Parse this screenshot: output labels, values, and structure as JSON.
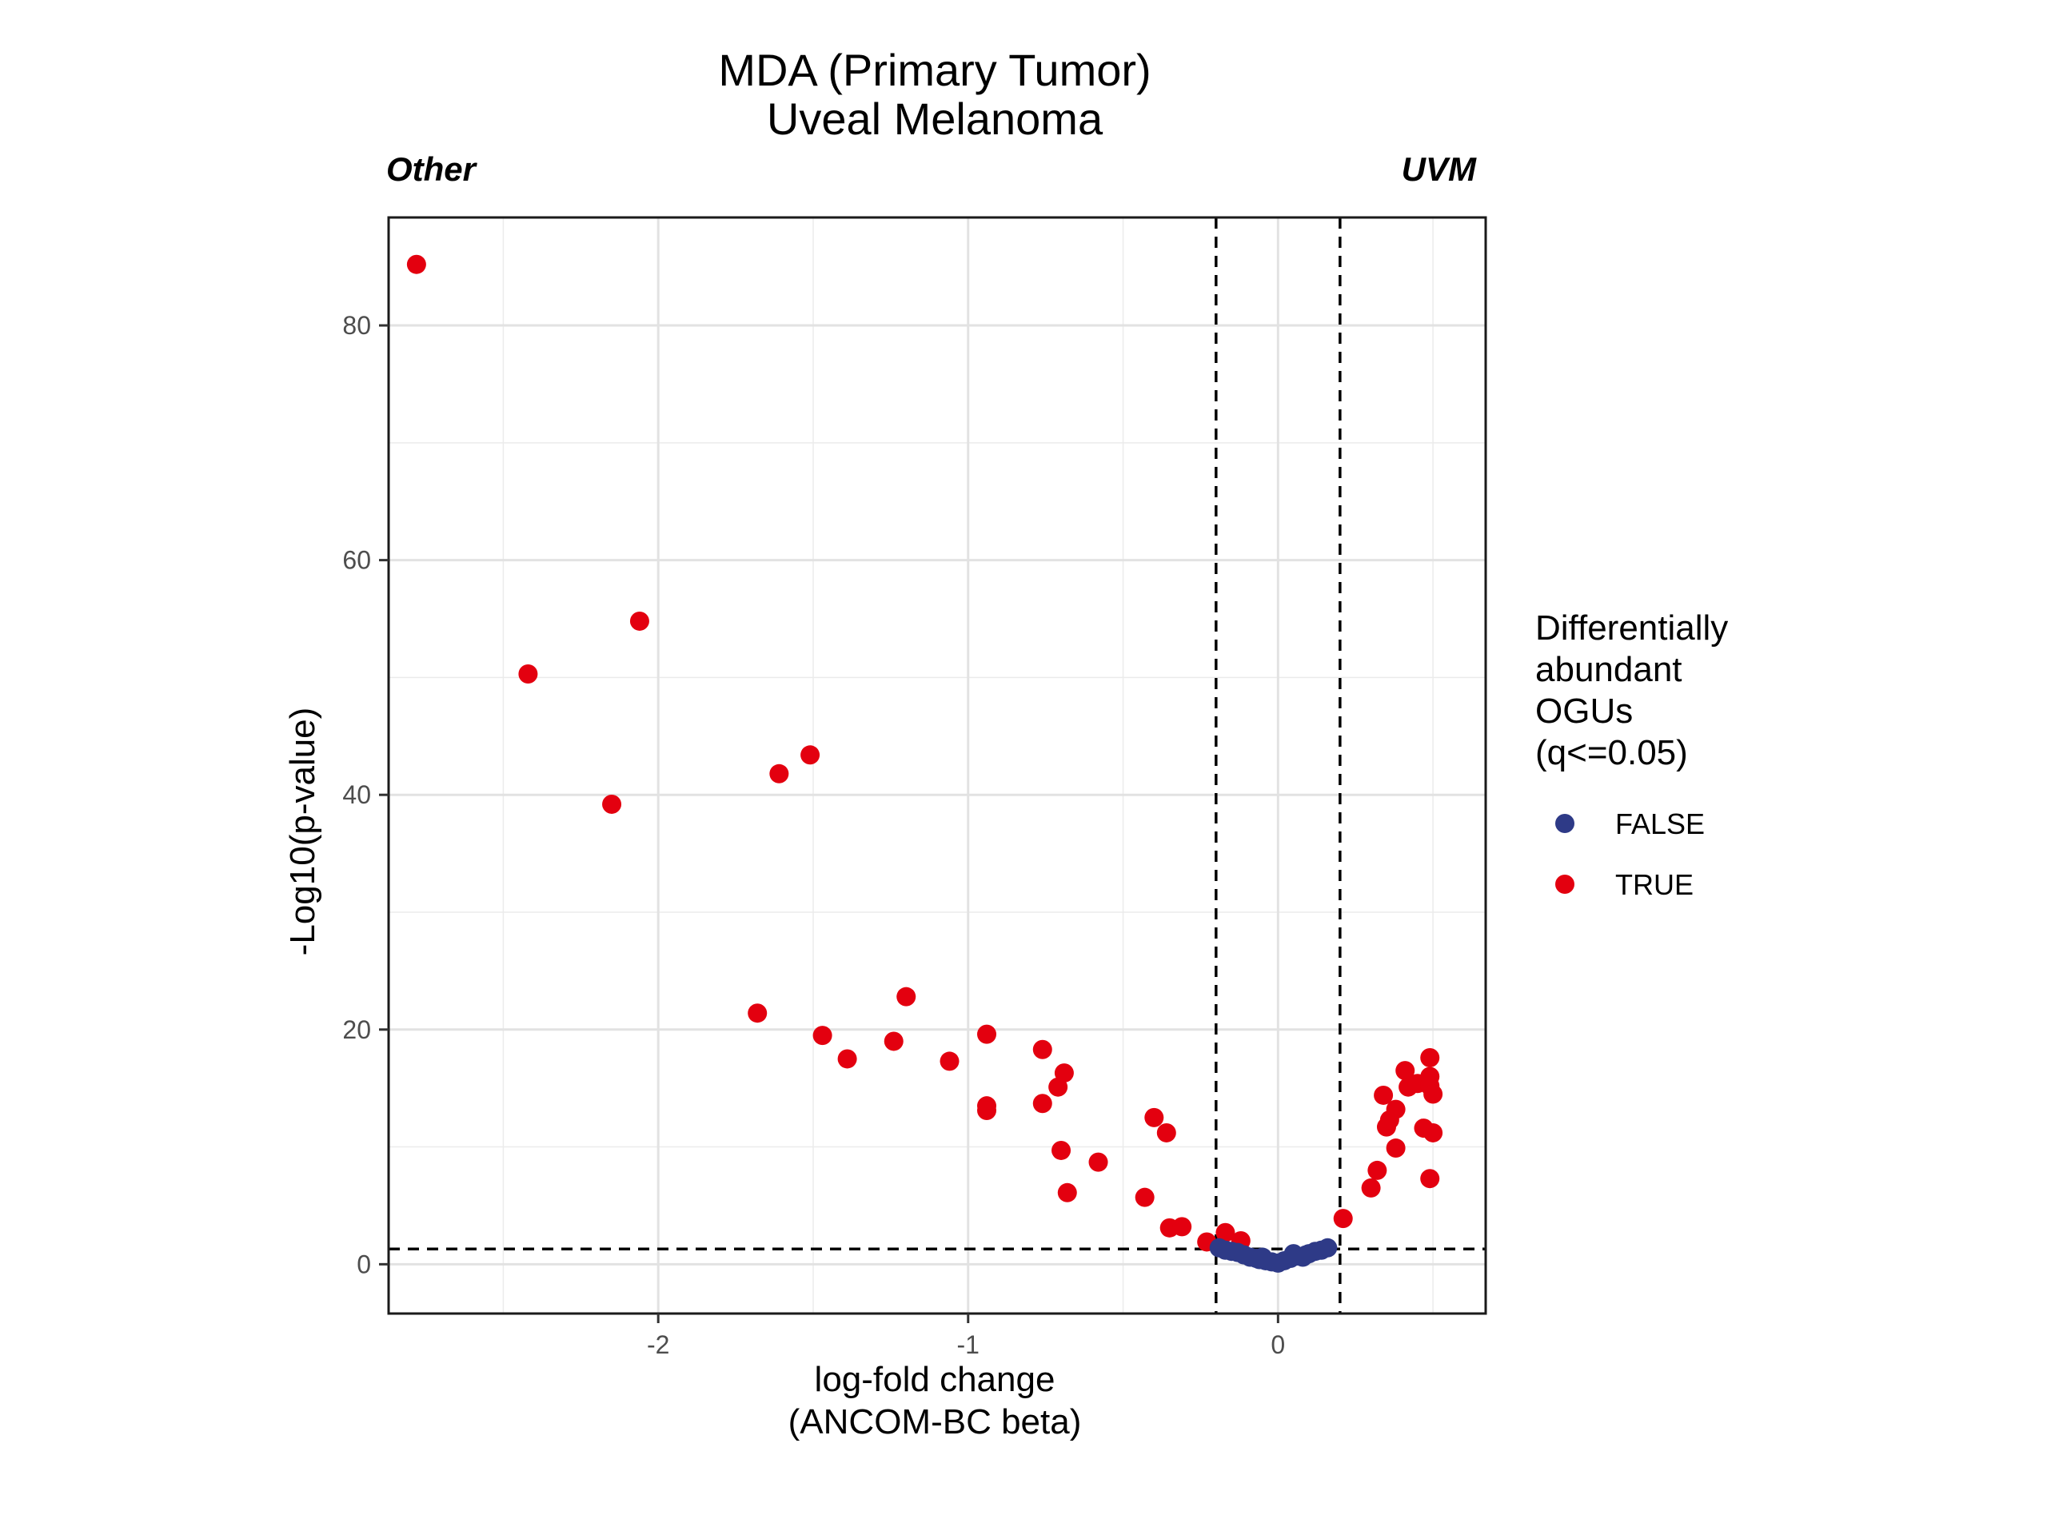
{
  "chart_data": {
    "type": "scatter",
    "title_lines": [
      "MDA (Primary Tumor)",
      "Uveal Melanoma"
    ],
    "left_label": "Other",
    "right_label": "UVM",
    "xlabel_lines": [
      "log-fold change",
      "(ANCOM-BC beta)"
    ],
    "ylabel": "-Log10(p-value)",
    "xlim": [
      -2.87,
      0.67
    ],
    "ylim": [
      -4.2,
      89.2
    ],
    "xticks": [
      -2,
      -1,
      0
    ],
    "xtick_labels": [
      "-2",
      "-1",
      "0"
    ],
    "yticks": [
      0,
      20,
      40,
      60,
      80
    ],
    "ytick_labels": [
      "0",
      "20",
      "40",
      "60",
      "80"
    ],
    "x_minor_gridlines": [
      -2.5,
      -1.5,
      -0.5,
      0.5
    ],
    "y_minor_gridlines": [
      10,
      30,
      50,
      70
    ],
    "grid": true,
    "vlines": [
      -0.2,
      0.2
    ],
    "hline": 1.3,
    "legend": {
      "title_lines": [
        "Differentially",
        "abundant",
        "OGUs",
        "(q<=0.05)"
      ],
      "position": "right",
      "entries": [
        {
          "label": "FALSE",
          "color": "#2E3A87"
        },
        {
          "label": "TRUE",
          "color": "#E3000F"
        }
      ]
    },
    "series": [
      {
        "name": "TRUE",
        "color": "#E3000F",
        "points": [
          [
            -2.78,
            85.2
          ],
          [
            -2.42,
            50.3
          ],
          [
            -2.06,
            54.8
          ],
          [
            -2.15,
            39.2
          ],
          [
            -1.61,
            41.8
          ],
          [
            -1.51,
            43.4
          ],
          [
            -1.68,
            21.4
          ],
          [
            -1.47,
            19.5
          ],
          [
            -1.39,
            17.5
          ],
          [
            -1.2,
            22.8
          ],
          [
            -1.24,
            19.0
          ],
          [
            -1.06,
            17.3
          ],
          [
            -0.94,
            19.6
          ],
          [
            -0.94,
            13.5
          ],
          [
            -0.94,
            13.1
          ],
          [
            -0.76,
            18.3
          ],
          [
            -0.76,
            13.7
          ],
          [
            -0.71,
            15.1
          ],
          [
            -0.69,
            16.3
          ],
          [
            -0.7,
            9.7
          ],
          [
            -0.68,
            6.1
          ],
          [
            -0.58,
            8.7
          ],
          [
            -0.4,
            12.5
          ],
          [
            -0.36,
            11.2
          ],
          [
            -0.43,
            5.7
          ],
          [
            -0.35,
            3.1
          ],
          [
            -0.31,
            3.2
          ],
          [
            -0.23,
            1.9
          ],
          [
            -0.17,
            2.7
          ],
          [
            -0.12,
            2.0
          ],
          [
            0.21,
            3.9
          ],
          [
            0.3,
            6.5
          ],
          [
            0.32,
            8.0
          ],
          [
            0.34,
            14.4
          ],
          [
            0.35,
            11.7
          ],
          [
            0.36,
            12.3
          ],
          [
            0.38,
            13.2
          ],
          [
            0.38,
            9.9
          ],
          [
            0.41,
            16.5
          ],
          [
            0.42,
            15.1
          ],
          [
            0.45,
            15.4
          ],
          [
            0.47,
            11.6
          ],
          [
            0.49,
            17.6
          ],
          [
            0.49,
            16.0
          ],
          [
            0.49,
            15.2
          ],
          [
            0.5,
            14.5
          ],
          [
            0.5,
            11.2
          ],
          [
            0.49,
            7.3
          ]
        ]
      },
      {
        "name": "FALSE",
        "color": "#2E3A87",
        "points": [
          [
            -0.19,
            1.4
          ],
          [
            -0.17,
            1.2
          ],
          [
            -0.15,
            1.1
          ],
          [
            -0.13,
            1.0
          ],
          [
            -0.11,
            0.8
          ],
          [
            -0.09,
            0.6
          ],
          [
            -0.07,
            0.5
          ],
          [
            -0.06,
            0.4
          ],
          [
            -0.04,
            0.3
          ],
          [
            -0.02,
            0.2
          ],
          [
            0.0,
            0.1
          ],
          [
            0.02,
            0.3
          ],
          [
            0.04,
            0.5
          ],
          [
            0.06,
            0.7
          ],
          [
            0.08,
            0.6
          ],
          [
            0.1,
            0.9
          ],
          [
            0.12,
            1.1
          ],
          [
            0.14,
            1.2
          ],
          [
            0.16,
            1.4
          ],
          [
            0.05,
            0.9
          ],
          [
            -0.05,
            0.6
          ],
          [
            0.09,
            0.8
          ]
        ]
      }
    ]
  }
}
